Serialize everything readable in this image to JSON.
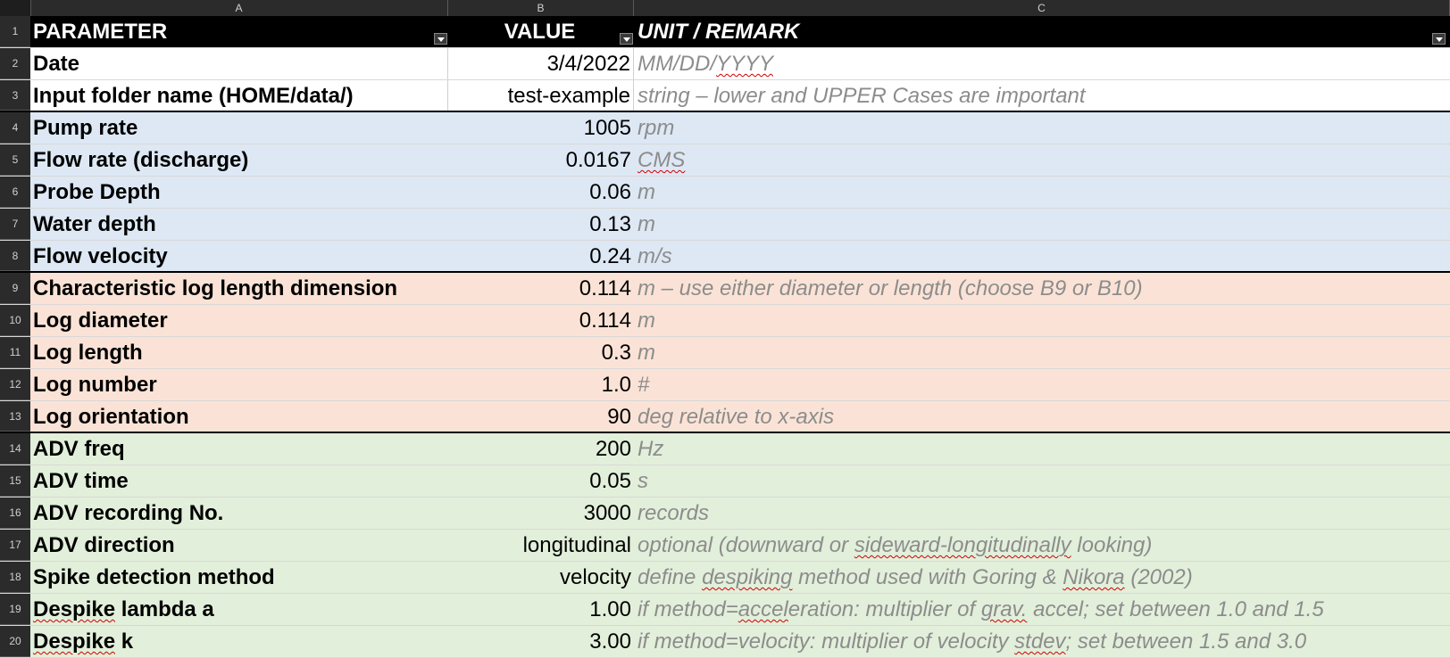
{
  "columns": [
    "A",
    "B",
    "C"
  ],
  "header": {
    "row_number": "1",
    "parameter": "PARAMETER",
    "value": "VALUE",
    "remark": "UNIT / REMARK"
  },
  "rows": [
    {
      "n": "2",
      "parameter": "Date",
      "value": "3/4/2022",
      "remark": "MM/DD/YYYY",
      "group": "white"
    },
    {
      "n": "3",
      "parameter": "Input folder name (HOME/data/)",
      "value": "test-example",
      "remark": "string – lower and UPPER Cases are important",
      "group": "white"
    },
    {
      "n": "4",
      "parameter": "Pump rate",
      "value": "1005",
      "remark": "rpm",
      "group": "blue"
    },
    {
      "n": "5",
      "parameter": "Flow rate (discharge)",
      "value": "0.0167",
      "remark": "CMS",
      "group": "blue"
    },
    {
      "n": "6",
      "parameter": "Probe Depth",
      "value": "0.06",
      "remark": "m",
      "group": "blue"
    },
    {
      "n": "7",
      "parameter": "Water depth",
      "value": "0.13",
      "remark": "m",
      "group": "blue"
    },
    {
      "n": "8",
      "parameter": "Flow velocity",
      "value": "0.24",
      "remark": "m/s",
      "group": "blue"
    },
    {
      "n": "9",
      "parameter": "Characteristic log length dimension",
      "value": "0.114",
      "remark": "m – use either diameter or length (choose B9 or B10)",
      "group": "peach"
    },
    {
      "n": "10",
      "parameter": "Log diameter",
      "value": "0.114",
      "remark": "m",
      "group": "peach"
    },
    {
      "n": "11",
      "parameter": "Log length",
      "value": "0.3",
      "remark": "m",
      "group": "peach"
    },
    {
      "n": "12",
      "parameter": "Log number",
      "value": "1.0",
      "remark": "#",
      "group": "peach"
    },
    {
      "n": "13",
      "parameter": "Log orientation",
      "value": "90",
      "remark": "deg relative to x-axis",
      "group": "peach"
    },
    {
      "n": "14",
      "parameter": "ADV freq",
      "value": "200",
      "remark": "Hz",
      "group": "green"
    },
    {
      "n": "15",
      "parameter": "ADV time",
      "value": "0.05",
      "remark": "s",
      "group": "green"
    },
    {
      "n": "16",
      "parameter": "ADV recording No.",
      "value": "3000",
      "remark": "records",
      "group": "green"
    },
    {
      "n": "17",
      "parameter": "ADV direction",
      "value": "longitudinal",
      "remark": "optional (downward or sideward-longitudinally looking)",
      "group": "green"
    },
    {
      "n": "18",
      "parameter": "Spike detection method",
      "value": "velocity",
      "remark": "define despiking method used with Goring & Nikora (2002)",
      "group": "green"
    },
    {
      "n": "19",
      "parameter": "Despike lambda a",
      "value": "1.00",
      "remark": "if method=acceleration: multiplier of grav. accel; set between 1.0 and 1.5",
      "group": "green"
    },
    {
      "n": "20",
      "parameter": "Despike k",
      "value": "3.00",
      "remark": "if method=velocity: multiplier of velocity stdev; set between 1.5 and 3.0",
      "group": "green"
    }
  ],
  "colors": {
    "header": "#000000",
    "blue_group": "#dde8f4",
    "peach_group": "#fae3d6",
    "green_group": "#e2efda"
  }
}
